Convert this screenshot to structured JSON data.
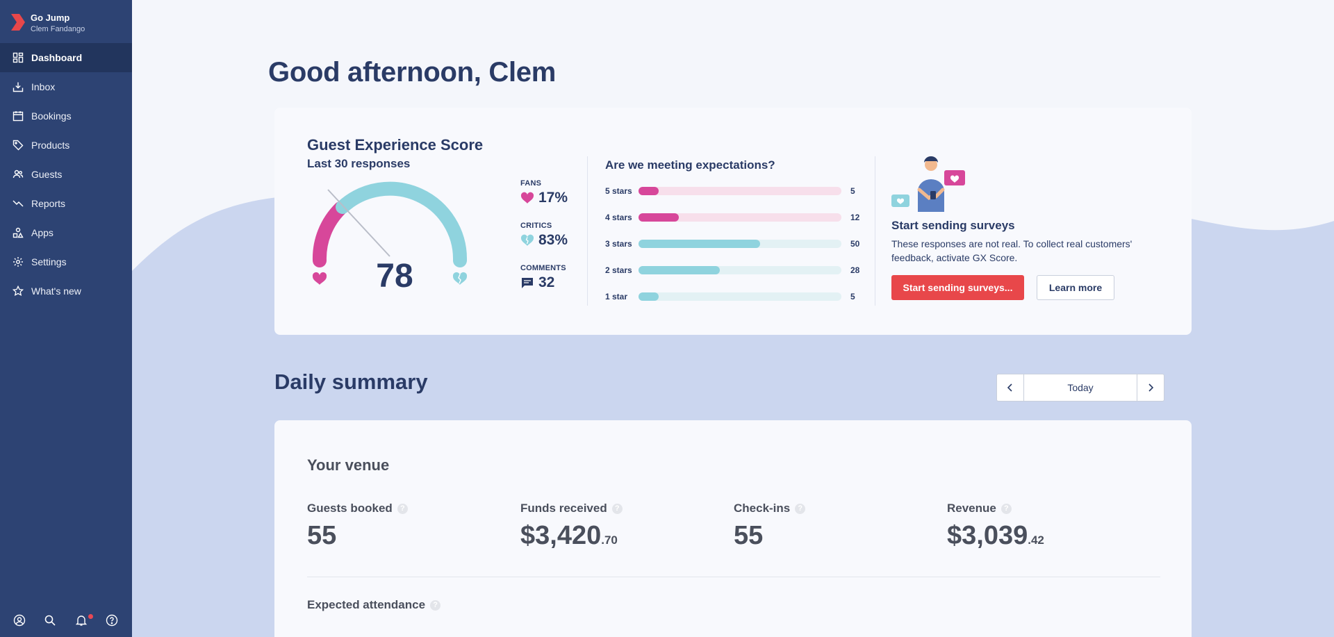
{
  "app": {
    "name": "Go Jump",
    "user": "Clem Fandango",
    "brand_color": "#e8474a"
  },
  "sidebar": {
    "items": [
      {
        "label": "Dashboard",
        "icon": "dashboard-icon",
        "active": true
      },
      {
        "label": "Inbox",
        "icon": "inbox-icon"
      },
      {
        "label": "Bookings",
        "icon": "calendar-icon"
      },
      {
        "label": "Products",
        "icon": "tag-icon"
      },
      {
        "label": "Guests",
        "icon": "users-icon"
      },
      {
        "label": "Reports",
        "icon": "trend-icon"
      },
      {
        "label": "Apps",
        "icon": "apps-icon"
      },
      {
        "label": "Settings",
        "icon": "gear-icon"
      },
      {
        "label": "What's new",
        "icon": "star-icon"
      }
    ],
    "bottom_icons": [
      "account-icon",
      "search-icon",
      "bell-icon",
      "help-icon"
    ]
  },
  "greeting": "Good afternoon, Clem",
  "gx": {
    "title": "Guest Experience Score",
    "subtitle": "Last 30 responses",
    "score": "78",
    "stats": {
      "fans_label": "FANS",
      "fans_value": "17%",
      "critics_label": "CRITICS",
      "critics_value": "83%",
      "comments_label": "COMMENTS",
      "comments_value": "32"
    },
    "expectations_title": "Are we meeting expectations?",
    "ratings": [
      {
        "label": "5 stars",
        "count": "5",
        "fraction": 0.1,
        "color": "#d7479a",
        "track": "#f7dfeb"
      },
      {
        "label": "4 stars",
        "count": "12",
        "fraction": 0.2,
        "color": "#d7479a",
        "track": "#f7dfeb"
      },
      {
        "label": "3 stars",
        "count": "50",
        "fraction": 0.6,
        "color": "#8fd3de",
        "track": "#e3f1f4"
      },
      {
        "label": "2 stars",
        "count": "28",
        "fraction": 0.4,
        "color": "#8fd3de",
        "track": "#e3f1f4"
      },
      {
        "label": "1 star",
        "count": "5",
        "fraction": 0.1,
        "color": "#8fd3de",
        "track": "#e3f1f4"
      }
    ],
    "survey_title": "Start sending surveys",
    "survey_text": "These responses are not real. To collect real customers' feedback, activate GX Score.",
    "primary_button": "Start sending surveys...",
    "secondary_button": "Learn more"
  },
  "daily": {
    "title": "Daily summary",
    "date_label": "Today"
  },
  "venue": {
    "title": "Your venue",
    "metrics": [
      {
        "label": "Guests booked",
        "value": "55",
        "cents": ""
      },
      {
        "label": "Funds received",
        "value": "$3,420",
        "cents": ".70"
      },
      {
        "label": "Check-ins",
        "value": "55",
        "cents": ""
      },
      {
        "label": "Revenue",
        "value": "$3,039",
        "cents": ".42"
      }
    ],
    "attendance_label": "Expected attendance",
    "help_glyph": "?"
  }
}
